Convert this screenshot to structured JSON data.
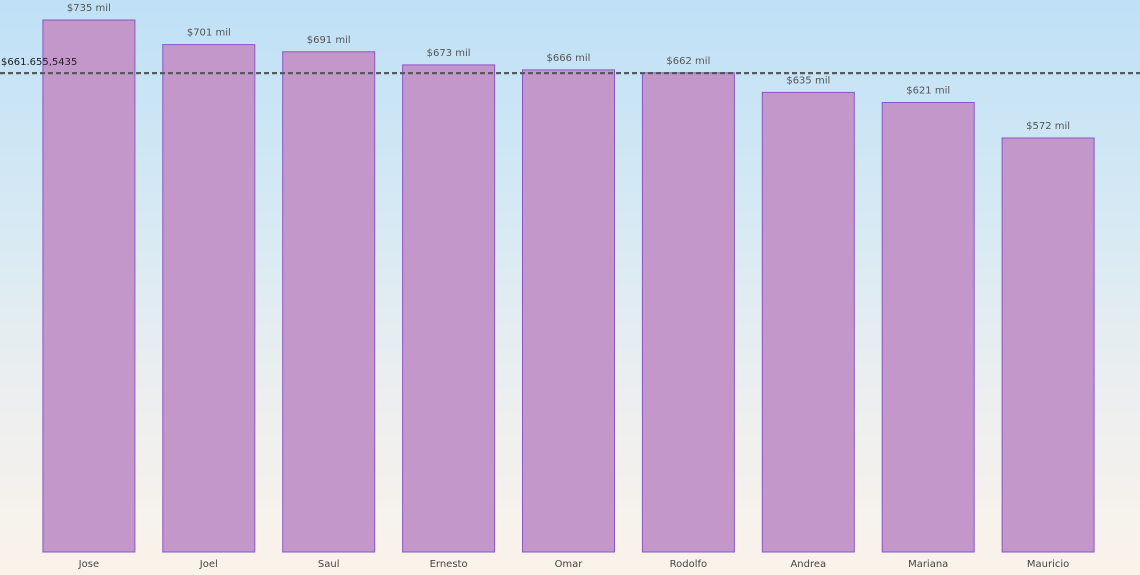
{
  "chart_data": {
    "type": "bar",
    "categories": [
      "Jose",
      "Joel",
      "Saul",
      "Ernesto",
      "Omar",
      "Rodolfo",
      "Andrea",
      "Mariana",
      "Mauricio"
    ],
    "values": [
      735000,
      701000,
      691000,
      673000,
      666000,
      662000,
      635000,
      621000,
      572000
    ],
    "data_labels": [
      "$735 mil",
      "$701 mil",
      "$691 mil",
      "$673 mil",
      "$666 mil",
      "$662 mil",
      "$635 mil",
      "$621 mil",
      "$572 mil"
    ],
    "reference_line": {
      "value": 661655.5435,
      "label": "$661.655,5435",
      "style": "dashed"
    },
    "title": "",
    "xlabel": "",
    "ylabel": "",
    "ylim": [
      0,
      735000
    ],
    "grid": false,
    "legend": "none",
    "colors": {
      "bar_fill": "#c397c9",
      "bar_stroke": "#8a56c7",
      "reference_line": "#555a60"
    }
  }
}
